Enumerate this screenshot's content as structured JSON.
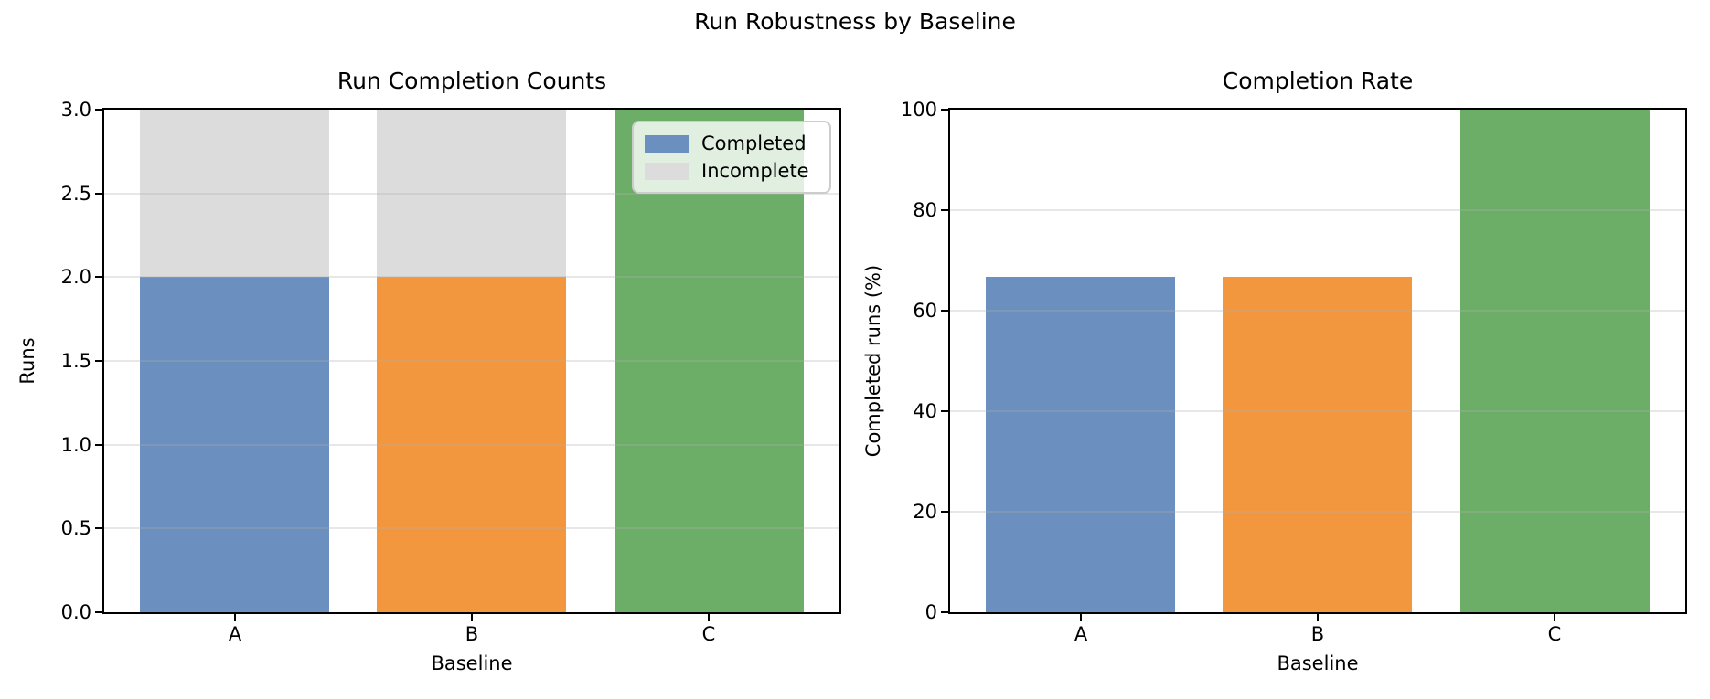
{
  "figure": {
    "title": "Run Robustness by Baseline",
    "background": "#ffffff"
  },
  "colors": {
    "category_colors": [
      "#6B8FBF",
      "#F2973D",
      "#6CAE68"
    ],
    "incomplete": "#DCDCDC",
    "grid": "rgba(176,176,176,0.3)",
    "spine": "#000000",
    "legend_bg": "rgba(255,255,255,0.8)",
    "legend_border": "#cccccc",
    "text": "#000000"
  },
  "legend": {
    "position": "upper right",
    "items": [
      {
        "label": "Completed",
        "color": "#6B8FBF"
      },
      {
        "label": "Incomplete",
        "color": "#DCDCDC"
      }
    ]
  },
  "chart_data": [
    {
      "type": "bar",
      "stacked": true,
      "title": "Run Completion Counts",
      "xlabel": "Baseline",
      "ylabel": "Runs",
      "categories": [
        "A",
        "B",
        "C"
      ],
      "series": [
        {
          "name": "Completed",
          "values": [
            2,
            2,
            3
          ],
          "color_mode": "per-category"
        },
        {
          "name": "Incomplete",
          "values": [
            1,
            1,
            0
          ],
          "color_mode": "single"
        }
      ],
      "ylim": [
        0,
        3
      ],
      "yticks": [
        0,
        0.5,
        1,
        1.5,
        2,
        2.5,
        3
      ],
      "ytick_labels": [
        "0.0",
        "0.5",
        "1.0",
        "1.5",
        "2.0",
        "2.5",
        "3.0"
      ],
      "grid": true,
      "legend": true
    },
    {
      "type": "bar",
      "stacked": false,
      "title": "Completion Rate",
      "xlabel": "Baseline",
      "ylabel": "Completed runs (%)",
      "categories": [
        "A",
        "B",
        "C"
      ],
      "values": [
        66.7,
        66.7,
        100
      ],
      "ylim": [
        0,
        100
      ],
      "yticks": [
        0,
        20,
        40,
        60,
        80,
        100
      ],
      "ytick_labels": [
        "0",
        "20",
        "40",
        "60",
        "80",
        "100"
      ],
      "grid": true,
      "legend": false
    }
  ]
}
